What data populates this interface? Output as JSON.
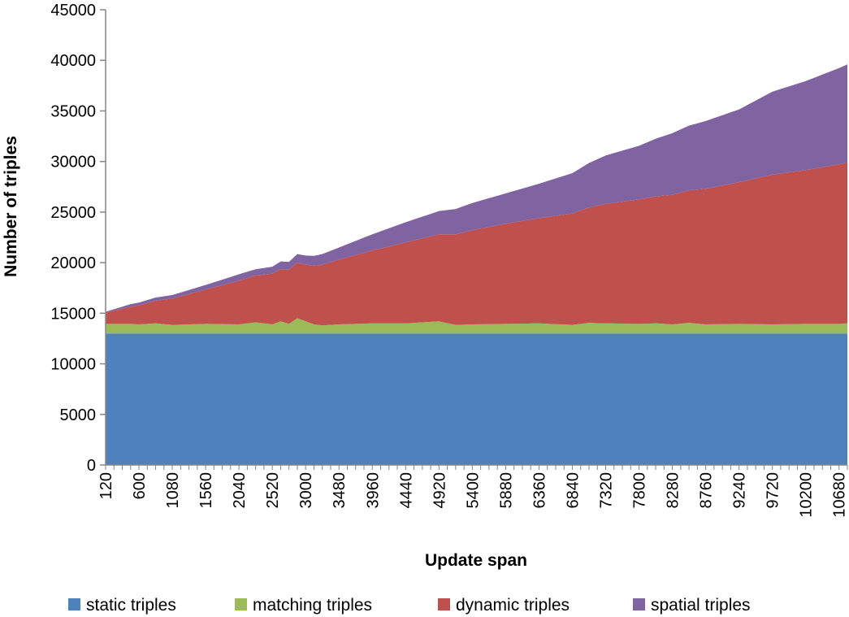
{
  "chart_data": {
    "type": "area",
    "stacked": true,
    "title": "",
    "xlabel": "Update span",
    "ylabel": "Number of triples",
    "ylim": [
      0,
      45000
    ],
    "yticks": [
      0,
      5000,
      10000,
      15000,
      20000,
      25000,
      30000,
      35000,
      40000,
      45000
    ],
    "x_start": 120,
    "x_step": 120,
    "x_count": 90,
    "xtick_labels": [
      "120",
      "600",
      "1080",
      "1560",
      "2040",
      "2520",
      "3000",
      "3480",
      "3960",
      "4440",
      "4920",
      "5400",
      "5880",
      "6360",
      "6840",
      "7320",
      "7800",
      "8280",
      "8760",
      "9240",
      "9720",
      "10200",
      "10680"
    ],
    "grid": false,
    "legend": "bottom",
    "series": [
      {
        "name": "static triples",
        "color": "#4f81bd",
        "anchors": [
          [
            120,
            13000
          ],
          [
            10800,
            13000
          ]
        ]
      },
      {
        "name": "matching triples",
        "color": "#9bbb59",
        "anchors": [
          [
            120,
            950
          ],
          [
            480,
            950
          ],
          [
            600,
            900
          ],
          [
            840,
            1000
          ],
          [
            1080,
            850
          ],
          [
            1560,
            950
          ],
          [
            2040,
            900
          ],
          [
            2280,
            1100
          ],
          [
            2520,
            900
          ],
          [
            2640,
            1200
          ],
          [
            2760,
            950
          ],
          [
            2880,
            1500
          ],
          [
            3120,
            900
          ],
          [
            3240,
            800
          ],
          [
            3480,
            900
          ],
          [
            3960,
            1000
          ],
          [
            4440,
            1000
          ],
          [
            4920,
            1200
          ],
          [
            5160,
            850
          ],
          [
            5400,
            900
          ],
          [
            5880,
            950
          ],
          [
            6360,
            1000
          ],
          [
            6840,
            850
          ],
          [
            7080,
            1050
          ],
          [
            7320,
            1000
          ],
          [
            7800,
            950
          ],
          [
            8040,
            1000
          ],
          [
            8280,
            900
          ],
          [
            8520,
            1050
          ],
          [
            8760,
            900
          ],
          [
            9240,
            950
          ],
          [
            9720,
            900
          ],
          [
            10200,
            950
          ],
          [
            10680,
            950
          ],
          [
            10800,
            1000
          ]
        ]
      },
      {
        "name": "dynamic triples",
        "color": "#c0504d",
        "anchors": [
          [
            120,
            1100
          ],
          [
            480,
            1700
          ],
          [
            1080,
            2600
          ],
          [
            1560,
            3400
          ],
          [
            2040,
            4300
          ],
          [
            2520,
            5000
          ],
          [
            2880,
            5500
          ],
          [
            3000,
            5600
          ],
          [
            3480,
            6400
          ],
          [
            3960,
            7200
          ],
          [
            4440,
            8000
          ],
          [
            4920,
            8600
          ],
          [
            5400,
            9300
          ],
          [
            5880,
            9900
          ],
          [
            6360,
            10400
          ],
          [
            6840,
            11000
          ],
          [
            7320,
            11800
          ],
          [
            7800,
            12300
          ],
          [
            8280,
            12800
          ],
          [
            8760,
            13400
          ],
          [
            9240,
            14000
          ],
          [
            9720,
            14800
          ],
          [
            10200,
            15200
          ],
          [
            10800,
            15900
          ]
        ]
      },
      {
        "name": "spatial triples",
        "color": "#8064a2",
        "anchors": [
          [
            120,
            100
          ],
          [
            480,
            250
          ],
          [
            1080,
            350
          ],
          [
            1560,
            450
          ],
          [
            2040,
            650
          ],
          [
            2280,
            600
          ],
          [
            2520,
            700
          ],
          [
            2760,
            800
          ],
          [
            3000,
            900
          ],
          [
            3480,
            1200
          ],
          [
            3960,
            1600
          ],
          [
            4440,
            2000
          ],
          [
            4920,
            2300
          ],
          [
            5400,
            2700
          ],
          [
            5880,
            3000
          ],
          [
            6360,
            3400
          ],
          [
            6840,
            4000
          ],
          [
            7320,
            4800
          ],
          [
            7800,
            5300
          ],
          [
            8280,
            6100
          ],
          [
            8760,
            6700
          ],
          [
            9240,
            7200
          ],
          [
            9720,
            8200
          ],
          [
            10200,
            8800
          ],
          [
            10800,
            9700
          ]
        ]
      }
    ]
  }
}
